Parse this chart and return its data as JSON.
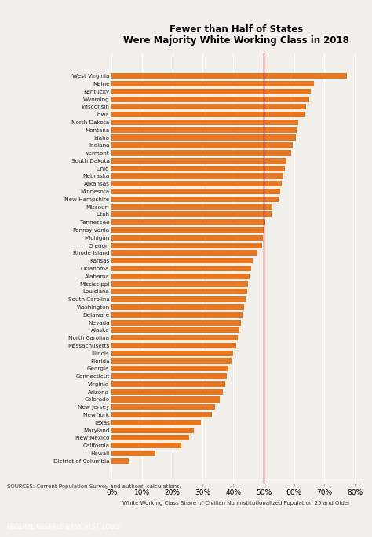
{
  "title_line1": "Fewer than Half of States",
  "title_line2": "Were Majority White Working Class in 2018",
  "xlabel": "White Working Class Share of Civilian Noninstitutionalized Population 25 and Older",
  "source": "SOURCES: Current Population Survey and authors’ calculations.",
  "footer": "FEDERAL RESERVE BANK of ST. LOUIS",
  "reference_line": 0.5,
  "bar_color": "#E87722",
  "ref_line_color": "#8B1A1A",
  "background_color": "#F2F0EB",
  "footer_bg": "#1B3A5C",
  "states": [
    "West Virginia",
    "Maine",
    "Kentucky",
    "Wyoming",
    "Wisconsin",
    "Iowa",
    "North Dakota",
    "Montana",
    "Idaho",
    "Indiana",
    "Vermont",
    "South Dakota",
    "Ohio",
    "Nebraska",
    "Arkansas",
    "Minnesota",
    "New Hampshire",
    "Missouri",
    "Utah",
    "Tennessee",
    "Pennsylvania",
    "Michigan",
    "Oregon",
    "Rhode Island",
    "Kansas",
    "Oklahoma",
    "Alabama",
    "Mississippi",
    "Louisiana",
    "South Carolina",
    "Washington",
    "Delaware",
    "Nevada",
    "Alaska",
    "North Carolina",
    "Massachusetts",
    "Illinois",
    "Florida",
    "Georgia",
    "Connecticut",
    "Virginia",
    "Arizona",
    "Colorado",
    "New Jersey",
    "New York",
    "Texas",
    "Maryland",
    "New Mexico",
    "California",
    "Hawaii",
    "District of Columbia"
  ],
  "values": [
    0.775,
    0.665,
    0.655,
    0.65,
    0.64,
    0.635,
    0.615,
    0.61,
    0.605,
    0.595,
    0.59,
    0.575,
    0.57,
    0.565,
    0.56,
    0.555,
    0.55,
    0.53,
    0.525,
    0.505,
    0.5,
    0.498,
    0.496,
    0.48,
    0.465,
    0.46,
    0.455,
    0.45,
    0.445,
    0.44,
    0.435,
    0.43,
    0.425,
    0.42,
    0.415,
    0.41,
    0.4,
    0.395,
    0.385,
    0.38,
    0.375,
    0.365,
    0.355,
    0.34,
    0.33,
    0.295,
    0.27,
    0.255,
    0.23,
    0.145,
    0.055
  ],
  "xlim": [
    0,
    0.82
  ],
  "xticks": [
    0.0,
    0.1,
    0.2,
    0.3,
    0.4,
    0.5,
    0.6,
    0.7,
    0.8
  ],
  "xtick_labels": [
    "0%",
    "10%",
    "20%",
    "30%",
    "40%",
    "50%",
    "60%",
    "70%",
    "80%"
  ]
}
